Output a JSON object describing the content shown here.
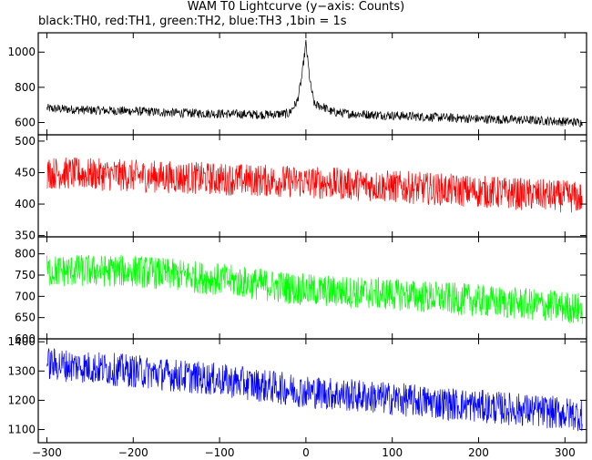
{
  "chart_data": {
    "type": "line",
    "title": "WAM T0 Lightcurve (y−axis: Counts)",
    "subtitle": "black:TH0, red:TH1, green:TH2, blue:TH3 ,1bin = 1s",
    "xlim": [
      -310,
      325
    ],
    "xticks": [
      -300,
      -200,
      -100,
      0,
      100,
      200,
      300
    ],
    "x_tick_labels": [
      "−300",
      "−200",
      "−100",
      "0",
      "100",
      "200",
      "300"
    ],
    "panels": [
      {
        "name": "TH0",
        "color": "#000000",
        "ylim": [
          530,
          1110
        ],
        "yticks": [
          600,
          800,
          1000
        ],
        "ytick_labels": [
          "600",
          "800",
          "1000"
        ],
        "x": [
          -300,
          -250,
          -200,
          -150,
          -100,
          -50,
          -20,
          -10,
          -5,
          0,
          5,
          10,
          20,
          30,
          50,
          100,
          150,
          200,
          250,
          300,
          320
        ],
        "y": [
          680,
          670,
          665,
          655,
          650,
          645,
          650,
          720,
          850,
          1050,
          820,
          700,
          690,
          660,
          650,
          640,
          630,
          620,
          615,
          605,
          600
        ]
      },
      {
        "name": "TH1",
        "color": "#ff0000",
        "ylim": [
          348,
          510
        ],
        "yticks": [
          350,
          400,
          450,
          500
        ],
        "ytick_labels": [
          "350",
          "400",
          "450",
          "500"
        ],
        "x": [
          -300,
          -200,
          -100,
          0,
          100,
          200,
          300,
          320
        ],
        "y": [
          450,
          445,
          440,
          435,
          428,
          420,
          412,
          410
        ]
      },
      {
        "name": "TH2",
        "color": "#00ff00",
        "ylim": [
          600,
          840
        ],
        "yticks": [
          600,
          650,
          700,
          750,
          800
        ],
        "ytick_labels": [
          "600",
          "650",
          "700",
          "750",
          "800"
        ],
        "x": [
          -300,
          -200,
          -100,
          0,
          100,
          200,
          300,
          320
        ],
        "y": [
          760,
          760,
          740,
          715,
          705,
          690,
          675,
          670
        ]
      },
      {
        "name": "TH3",
        "color": "#0000ff",
        "ylim": [
          1055,
          1410
        ],
        "yticks": [
          1100,
          1200,
          1300,
          1400
        ],
        "ytick_labels": [
          "1100",
          "1200",
          "1300",
          "1400"
        ],
        "x": [
          -300,
          -200,
          -100,
          0,
          100,
          200,
          300,
          320
        ],
        "y": [
          1325,
          1300,
          1270,
          1230,
          1205,
          1180,
          1155,
          1150
        ]
      }
    ]
  }
}
